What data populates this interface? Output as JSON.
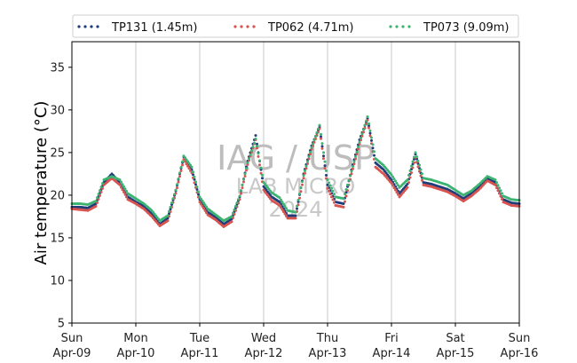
{
  "chart_data": {
    "type": "scatter",
    "title": "",
    "xlabel": "",
    "ylabel": "Air temperature (°C)",
    "ylim": [
      5,
      38
    ],
    "yticks": [
      5,
      10,
      15,
      20,
      25,
      30,
      35
    ],
    "xlim": [
      "2023-04-09",
      "2023-04-16"
    ],
    "xticks": [
      {
        "day": "Sun",
        "date": "Apr-09"
      },
      {
        "day": "Mon",
        "date": "Apr-10"
      },
      {
        "day": "Tue",
        "date": "Apr-11"
      },
      {
        "day": "Wed",
        "date": "Apr-12"
      },
      {
        "day": "Thu",
        "date": "Apr-13"
      },
      {
        "day": "Fri",
        "date": "Apr-14"
      },
      {
        "day": "Sat",
        "date": "Apr-15"
      },
      {
        "day": "Sun",
        "date": "Apr-16"
      }
    ],
    "grid": "vertical",
    "legend_position": "top",
    "watermark": [
      "IAG / USP",
      "LAB MICRO",
      "2024"
    ],
    "series": [
      {
        "name": "TP131 (1.45m)",
        "color": "#1f3d7a",
        "x": [
          "2023-04-09 00:00",
          "2023-04-09 03:00",
          "2023-04-09 06:00",
          "2023-04-09 09:00",
          "2023-04-09 12:00",
          "2023-04-09 15:00",
          "2023-04-09 18:00",
          "2023-04-09 21:00",
          "2023-04-10 00:00",
          "2023-04-10 03:00",
          "2023-04-10 06:00",
          "2023-04-10 09:00",
          "2023-04-10 12:00",
          "2023-04-10 15:00",
          "2023-04-10 18:00",
          "2023-04-10 21:00",
          "2023-04-11 00:00",
          "2023-04-11 03:00",
          "2023-04-11 06:00",
          "2023-04-11 09:00",
          "2023-04-11 12:00",
          "2023-04-11 15:00",
          "2023-04-11 18:00",
          "2023-04-11 21:00",
          "2023-04-12 00:00",
          "2023-04-12 03:00",
          "2023-04-12 06:00",
          "2023-04-12 09:00",
          "2023-04-12 12:00",
          "2023-04-12 15:00",
          "2023-04-12 18:00",
          "2023-04-12 21:00",
          "2023-04-13 00:00",
          "2023-04-13 03:00",
          "2023-04-13 06:00",
          "2023-04-13 09:00",
          "2023-04-13 12:00",
          "2023-04-13 15:00",
          "2023-04-13 18:00",
          "2023-04-13 21:00",
          "2023-04-14 00:00",
          "2023-04-14 03:00",
          "2023-04-14 06:00",
          "2023-04-14 09:00",
          "2023-04-14 12:00",
          "2023-04-14 15:00",
          "2023-04-14 18:00",
          "2023-04-14 21:00",
          "2023-04-15 00:00",
          "2023-04-15 03:00",
          "2023-04-15 06:00",
          "2023-04-15 09:00",
          "2023-04-15 12:00",
          "2023-04-15 15:00",
          "2023-04-15 18:00",
          "2023-04-15 21:00",
          "2023-04-16 00:00"
        ],
        "y": [
          18.6,
          18.6,
          18.5,
          19.0,
          21.5,
          22.5,
          21.5,
          19.8,
          19.2,
          18.7,
          17.8,
          16.6,
          17.3,
          20.5,
          24.5,
          23.0,
          19.5,
          18.0,
          17.4,
          16.6,
          17.2,
          19.8,
          24.0,
          27.0,
          21.0,
          19.8,
          19.2,
          17.6,
          17.6,
          22.5,
          25.8,
          28.0,
          21.2,
          19.2,
          19.0,
          23.0,
          26.5,
          29.0,
          23.8,
          23.0,
          21.8,
          20.2,
          21.3,
          24.8,
          21.5,
          21.3,
          21.0,
          20.7,
          20.2,
          19.6,
          20.2,
          21.0,
          22.0,
          21.5,
          19.5,
          19.1,
          19.0
        ]
      },
      {
        "name": "TP062 (4.71m)",
        "color": "#d9534f",
        "x": [
          "2023-04-09 00:00",
          "2023-04-09 03:00",
          "2023-04-09 06:00",
          "2023-04-09 09:00",
          "2023-04-09 12:00",
          "2023-04-09 15:00",
          "2023-04-09 18:00",
          "2023-04-09 21:00",
          "2023-04-10 00:00",
          "2023-04-10 03:00",
          "2023-04-10 06:00",
          "2023-04-10 09:00",
          "2023-04-10 12:00",
          "2023-04-10 15:00",
          "2023-04-10 18:00",
          "2023-04-10 21:00",
          "2023-04-11 00:00",
          "2023-04-11 03:00",
          "2023-04-11 06:00",
          "2023-04-11 09:00",
          "2023-04-11 12:00",
          "2023-04-11 15:00",
          "2023-04-11 18:00",
          "2023-04-11 21:00",
          "2023-04-12 00:00",
          "2023-04-12 03:00",
          "2023-04-12 06:00",
          "2023-04-12 09:00",
          "2023-04-12 12:00",
          "2023-04-12 15:00",
          "2023-04-12 18:00",
          "2023-04-12 21:00",
          "2023-04-13 00:00",
          "2023-04-13 03:00",
          "2023-04-13 06:00",
          "2023-04-13 09:00",
          "2023-04-13 12:00",
          "2023-04-13 15:00",
          "2023-04-13 18:00",
          "2023-04-13 21:00",
          "2023-04-14 00:00",
          "2023-04-14 03:00",
          "2023-04-14 06:00",
          "2023-04-14 09:00",
          "2023-04-14 12:00",
          "2023-04-14 15:00",
          "2023-04-14 18:00",
          "2023-04-14 21:00",
          "2023-04-15 00:00",
          "2023-04-15 03:00",
          "2023-04-15 06:00",
          "2023-04-15 09:00",
          "2023-04-15 12:00",
          "2023-04-15 15:00",
          "2023-04-15 18:00",
          "2023-04-15 21:00",
          "2023-04-16 00:00"
        ],
        "y": [
          18.4,
          18.3,
          18.2,
          18.7,
          21.2,
          22.0,
          21.2,
          19.5,
          19.0,
          18.4,
          17.5,
          16.4,
          17.0,
          20.2,
          24.2,
          22.6,
          19.2,
          17.7,
          17.1,
          16.3,
          16.9,
          19.5,
          23.6,
          26.5,
          20.6,
          19.4,
          18.8,
          17.3,
          17.3,
          22.0,
          25.4,
          27.8,
          20.8,
          18.8,
          18.6,
          22.5,
          26.0,
          28.8,
          23.3,
          22.5,
          21.4,
          19.8,
          20.9,
          24.4,
          21.2,
          21.0,
          20.7,
          20.4,
          19.9,
          19.3,
          19.9,
          20.7,
          21.7,
          21.2,
          19.2,
          18.8,
          18.7
        ]
      },
      {
        "name": "TP073 (9.09m)",
        "color": "#3cb371",
        "x": [
          "2023-04-09 00:00",
          "2023-04-09 03:00",
          "2023-04-09 06:00",
          "2023-04-09 09:00",
          "2023-04-09 12:00",
          "2023-04-09 15:00",
          "2023-04-09 18:00",
          "2023-04-09 21:00",
          "2023-04-10 00:00",
          "2023-04-10 03:00",
          "2023-04-10 06:00",
          "2023-04-10 09:00",
          "2023-04-10 12:00",
          "2023-04-10 15:00",
          "2023-04-10 18:00",
          "2023-04-10 21:00",
          "2023-04-11 00:00",
          "2023-04-11 03:00",
          "2023-04-11 06:00",
          "2023-04-11 09:00",
          "2023-04-11 12:00",
          "2023-04-11 15:00",
          "2023-04-11 18:00",
          "2023-04-11 21:00",
          "2023-04-12 00:00",
          "2023-04-12 03:00",
          "2023-04-12 06:00",
          "2023-04-12 09:00",
          "2023-04-12 12:00",
          "2023-04-12 15:00",
          "2023-04-12 18:00",
          "2023-04-12 21:00",
          "2023-04-13 00:00",
          "2023-04-13 03:00",
          "2023-04-13 06:00",
          "2023-04-13 09:00",
          "2023-04-13 12:00",
          "2023-04-13 15:00",
          "2023-04-13 18:00",
          "2023-04-13 21:00",
          "2023-04-14 00:00",
          "2023-04-14 03:00",
          "2023-04-14 06:00",
          "2023-04-14 09:00",
          "2023-04-14 12:00",
          "2023-04-14 15:00",
          "2023-04-14 18:00",
          "2023-04-14 21:00",
          "2023-04-15 00:00",
          "2023-04-15 03:00",
          "2023-04-15 06:00",
          "2023-04-15 09:00",
          "2023-04-15 12:00",
          "2023-04-15 15:00",
          "2023-04-15 18:00",
          "2023-04-15 21:00",
          "2023-04-16 00:00"
        ],
        "y": [
          19.0,
          19.0,
          18.9,
          19.3,
          21.8,
          22.2,
          21.8,
          20.2,
          19.6,
          19.0,
          18.2,
          17.0,
          17.6,
          20.6,
          24.6,
          23.3,
          19.8,
          18.4,
          17.7,
          17.0,
          17.5,
          19.9,
          23.8,
          26.6,
          21.5,
          20.3,
          19.7,
          18.2,
          18.0,
          22.3,
          25.6,
          28.2,
          21.8,
          19.8,
          19.6,
          22.8,
          26.2,
          29.2,
          24.3,
          23.5,
          22.4,
          20.9,
          21.8,
          25.0,
          22.0,
          21.8,
          21.5,
          21.2,
          20.6,
          20.0,
          20.5,
          21.3,
          22.2,
          21.8,
          19.9,
          19.5,
          19.4
        ]
      }
    ]
  }
}
